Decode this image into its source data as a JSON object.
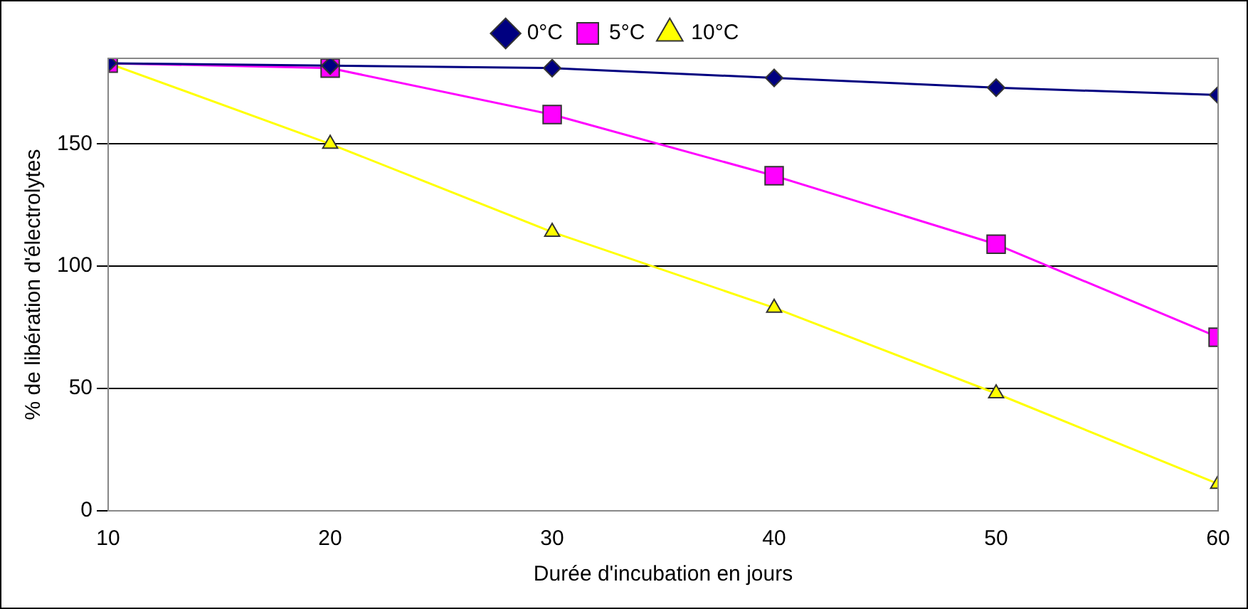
{
  "chart_data": {
    "type": "line",
    "xlabel": "Durée d'incubation en jours",
    "ylabel": "% de libération d'électrolytes",
    "x": [
      10,
      20,
      30,
      40,
      50,
      60
    ],
    "series": [
      {
        "name": "0°C",
        "color": "#000080",
        "marker": "diamond",
        "values": [
          183,
          182,
          181,
          177,
          173,
          170
        ]
      },
      {
        "name": "5°C",
        "color": "#ff00ff",
        "marker": "square",
        "values": [
          183,
          181,
          162,
          137,
          109,
          71
        ]
      },
      {
        "name": "10°C",
        "color": "#ffff00",
        "marker": "triangle",
        "values": [
          183,
          150,
          114,
          83,
          48,
          11
        ]
      }
    ],
    "xlim": [
      10,
      60
    ],
    "xticks": [
      10,
      20,
      30,
      40,
      50,
      60
    ],
    "ylim": [
      0,
      185
    ],
    "yticks": [
      0,
      50,
      100,
      150
    ],
    "grid": "y",
    "legend": "top",
    "line_style": "solid"
  }
}
